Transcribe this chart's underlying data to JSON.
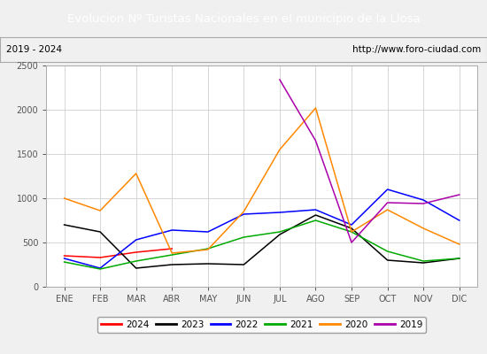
{
  "title": "Evolucion Nº Turistas Nacionales en el municipio de la Llosa",
  "subtitle_left": "2019 - 2024",
  "subtitle_right": "http://www.foro-ciudad.com",
  "title_bg_color": "#4472c4",
  "title_text_color": "#ffffff",
  "months": [
    "ENE",
    "FEB",
    "MAR",
    "ABR",
    "MAY",
    "JUN",
    "JUL",
    "AGO",
    "SEP",
    "OCT",
    "NOV",
    "DIC"
  ],
  "series": {
    "2024": {
      "color": "#ff0000",
      "data": [
        350,
        330,
        390,
        430,
        null,
        null,
        null,
        null,
        null,
        null,
        null,
        null
      ]
    },
    "2023": {
      "color": "#000000",
      "data": [
        700,
        620,
        210,
        250,
        260,
        250,
        590,
        810,
        660,
        300,
        270,
        320
      ]
    },
    "2022": {
      "color": "#0000ff",
      "data": [
        320,
        210,
        530,
        640,
        620,
        820,
        840,
        870,
        700,
        1100,
        980,
        750
      ]
    },
    "2021": {
      "color": "#00aa00",
      "data": [
        280,
        200,
        290,
        360,
        430,
        560,
        620,
        750,
        620,
        400,
        290,
        320
      ]
    },
    "2020": {
      "color": "#ff8800",
      "data": [
        1000,
        860,
        1280,
        380,
        420,
        850,
        1550,
        2020,
        620,
        870,
        660,
        480
      ]
    },
    "2019": {
      "color": "#aa00aa",
      "data": [
        null,
        null,
        null,
        null,
        null,
        null,
        2340,
        1650,
        500,
        950,
        940,
        1040
      ]
    }
  },
  "ylim": [
    0,
    2500
  ],
  "yticks": [
    0,
    500,
    1000,
    1500,
    2000,
    2500
  ],
  "legend_order": [
    "2024",
    "2023",
    "2022",
    "2021",
    "2020",
    "2019"
  ],
  "bg_color": "#f0f0f0",
  "plot_bg_color": "#ffffff",
  "grid_color": "#d0d0d0",
  "subtitle_border_color": "#aaaaaa"
}
